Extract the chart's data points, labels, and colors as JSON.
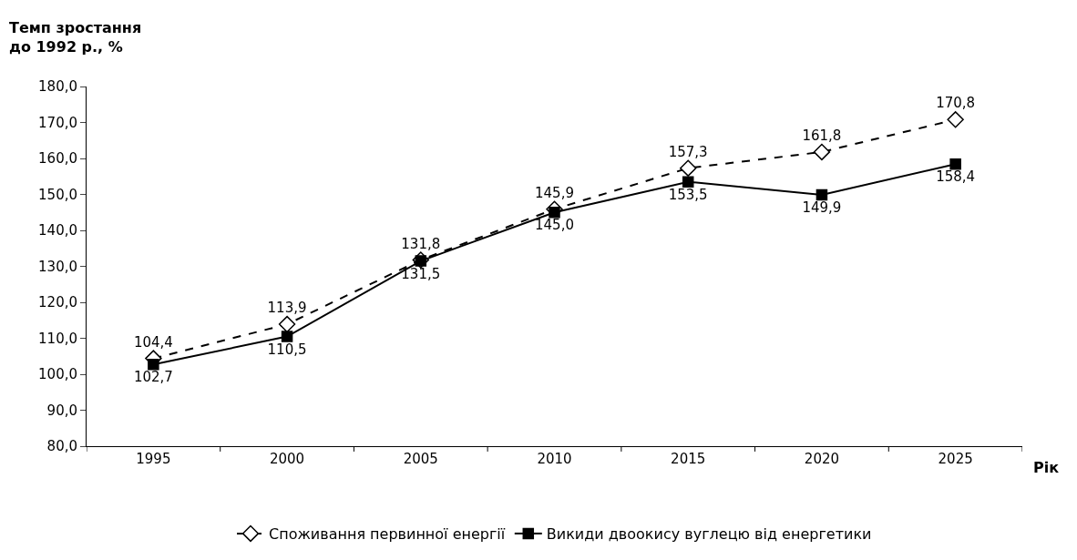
{
  "chart_data": {
    "type": "line",
    "ylabel": "Темп зростання\nдо 1992 р., %",
    "xlabel": "Рік",
    "categories": [
      "1995",
      "2000",
      "2005",
      "2010",
      "2015",
      "2020",
      "2025"
    ],
    "series": [
      {
        "name": "Споживання первинної енергії",
        "color": "#000000",
        "marker": "diamond",
        "line_style": "dashed",
        "values": [
          104.4,
          113.9,
          131.8,
          145.9,
          157.3,
          161.8,
          170.8
        ],
        "value_labels": [
          "104,4",
          "113,9",
          "131,8",
          "145,9",
          "157,3",
          "161,8",
          "170,8"
        ]
      },
      {
        "name": "Викиди двоокису вуглецю від енергетики",
        "color": "#000000",
        "marker": "square",
        "line_style": "solid",
        "values": [
          102.7,
          110.5,
          131.5,
          145.0,
          153.5,
          149.9,
          158.4
        ],
        "value_labels": [
          "102,7",
          "110,5",
          "131,5",
          "145,0",
          "153,5",
          "149,9",
          "158,4"
        ]
      }
    ],
    "ylim": [
      80,
      180
    ],
    "yticks": [
      {
        "value": 80,
        "label": "80,0"
      },
      {
        "value": 90,
        "label": "90,0"
      },
      {
        "value": 100,
        "label": "100,0"
      },
      {
        "value": 110,
        "label": "110,0"
      },
      {
        "value": 120,
        "label": "120,0"
      },
      {
        "value": 130,
        "label": "130,0"
      },
      {
        "value": 140,
        "label": "140,0"
      },
      {
        "value": 150,
        "label": "150,0"
      },
      {
        "value": 160,
        "label": "160,0"
      },
      {
        "value": 170,
        "label": "170,0"
      },
      {
        "value": 180,
        "label": "180,0"
      }
    ],
    "legend": "bottom"
  }
}
